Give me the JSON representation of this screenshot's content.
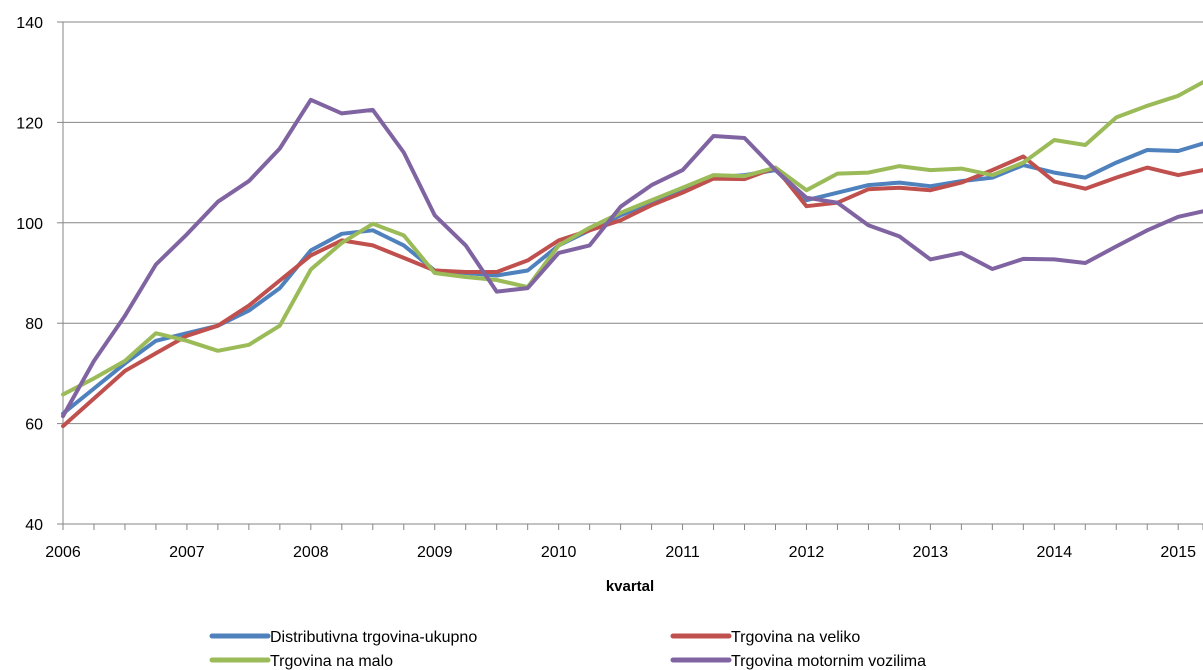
{
  "chart_data": {
    "type": "line",
    "xlabel": "kvartal",
    "ylabel": "",
    "ylim": [
      40,
      140
    ],
    "yticks": [
      40,
      60,
      80,
      100,
      120,
      140
    ],
    "xlim": [
      2006,
      2015.2
    ],
    "xticks": [
      "2006",
      "2007",
      "2008",
      "2009",
      "2010",
      "2011",
      "2012",
      "2013",
      "2014",
      "2015"
    ],
    "grid": "horizontal",
    "legend_position": "bottom",
    "x": [
      2006.0,
      2006.25,
      2006.5,
      2006.75,
      2007.0,
      2007.25,
      2007.5,
      2007.75,
      2008.0,
      2008.25,
      2008.5,
      2008.75,
      2009.0,
      2009.25,
      2009.5,
      2009.75,
      2010.0,
      2010.25,
      2010.5,
      2010.75,
      2011.0,
      2011.25,
      2011.5,
      2011.75,
      2012.0,
      2012.25,
      2012.5,
      2012.75,
      2013.0,
      2013.25,
      2013.5,
      2013.75,
      2014.0,
      2014.25,
      2014.5,
      2014.75,
      2015.0,
      2015.2
    ],
    "series": [
      {
        "name": "Distributivna trgovina-ukupno",
        "color": "#4F81BD",
        "values": [
          62,
          67,
          72,
          76.5,
          78,
          79.5,
          82.5,
          87,
          94.5,
          97.8,
          98.5,
          95.5,
          90.5,
          90,
          89.5,
          90.5,
          95.5,
          98.5,
          101.5,
          104,
          106.5,
          109,
          109.5,
          110.5,
          104.5,
          106,
          107.5,
          108,
          107.3,
          108.3,
          109,
          111.5,
          110,
          109,
          112,
          114.5,
          114.3,
          115.8
        ]
      },
      {
        "name": "Trgovina na veliko",
        "color": "#C0504D",
        "values": [
          59.5,
          65,
          70.5,
          74,
          77.5,
          79.5,
          83.5,
          88.5,
          93.5,
          96.5,
          95.5,
          93,
          90.5,
          90.2,
          90.2,
          92.5,
          96.5,
          98.5,
          100.5,
          103.5,
          106,
          108.8,
          108.7,
          111,
          103.3,
          104,
          106.7,
          107,
          106.5,
          108,
          110.5,
          113.2,
          108.2,
          106.8,
          109,
          111,
          109.5,
          110.5
        ]
      },
      {
        "name": "Trgovina na malo",
        "color": "#9BBB59",
        "values": [
          65.8,
          69,
          72.5,
          78,
          76.5,
          74.5,
          75.7,
          79.5,
          90.7,
          96,
          99.8,
          97.5,
          90,
          89.2,
          88.6,
          87.2,
          95.5,
          99,
          102,
          104.5,
          107,
          109.5,
          109.3,
          111,
          106.5,
          109.8,
          110,
          111.3,
          110.5,
          110.8,
          109.5,
          112,
          116.5,
          115.5,
          121,
          123.3,
          125.3,
          128
        ]
      },
      {
        "name": "Trgovina motornim vozilima",
        "color": "#8064A2",
        "values": [
          61.5,
          72.5,
          81.5,
          91.7,
          97.7,
          104.2,
          108.3,
          114.8,
          124.5,
          121.8,
          122.5,
          114,
          101.5,
          95.5,
          86.3,
          87,
          94,
          95.5,
          103.2,
          107.5,
          110.5,
          117.3,
          116.9,
          110.5,
          105,
          104,
          99.5,
          97.3,
          92.7,
          94,
          90.8,
          92.8,
          92.7,
          92,
          95.3,
          98.5,
          101.2,
          102.3
        ]
      }
    ]
  }
}
